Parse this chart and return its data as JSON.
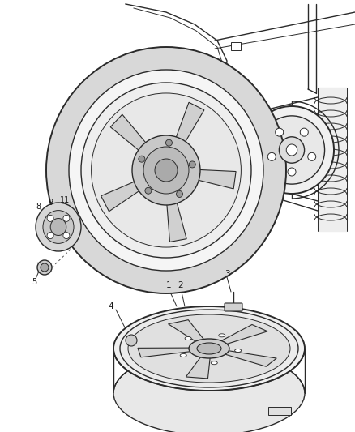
{
  "bg_color": "#ffffff",
  "line_color": "#2a2a2a",
  "label_color": "#1a1a1a",
  "fig_width": 4.38,
  "fig_height": 5.33,
  "dpi": 100
}
